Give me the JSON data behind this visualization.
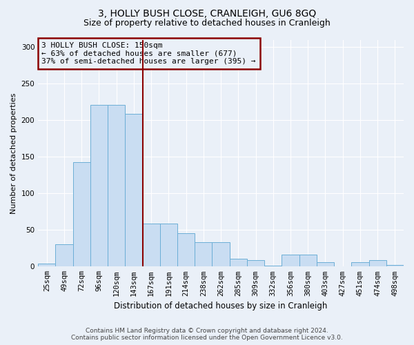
{
  "title": "3, HOLLY BUSH CLOSE, CRANLEIGH, GU6 8GQ",
  "subtitle": "Size of property relative to detached houses in Cranleigh",
  "xlabel": "Distribution of detached houses by size in Cranleigh",
  "ylabel": "Number of detached properties",
  "categories": [
    "25sqm",
    "49sqm",
    "72sqm",
    "96sqm",
    "120sqm",
    "143sqm",
    "167sqm",
    "191sqm",
    "214sqm",
    "238sqm",
    "262sqm",
    "285sqm",
    "309sqm",
    "332sqm",
    "356sqm",
    "380sqm",
    "403sqm",
    "427sqm",
    "451sqm",
    "474sqm",
    "498sqm"
  ],
  "values": [
    4,
    30,
    143,
    221,
    221,
    209,
    59,
    59,
    46,
    33,
    33,
    11,
    9,
    1,
    16,
    16,
    6,
    0,
    6,
    9,
    2
  ],
  "bar_color": "#c9ddf2",
  "bar_edge_color": "#6baed6",
  "vline_color": "#8b0000",
  "annotation_text": "3 HOLLY BUSH CLOSE: 150sqm\n← 63% of detached houses are smaller (677)\n37% of semi-detached houses are larger (395) →",
  "ylim": [
    0,
    310
  ],
  "yticks": [
    0,
    50,
    100,
    150,
    200,
    250,
    300
  ],
  "background_color": "#eaf0f8",
  "grid_color": "#ffffff",
  "footer": "Contains HM Land Registry data © Crown copyright and database right 2024.\nContains public sector information licensed under the Open Government Licence v3.0.",
  "title_fontsize": 10,
  "subtitle_fontsize": 9,
  "xlabel_fontsize": 8.5,
  "ylabel_fontsize": 8,
  "tick_fontsize": 7.5,
  "annotation_fontsize": 8,
  "footer_fontsize": 6.5
}
